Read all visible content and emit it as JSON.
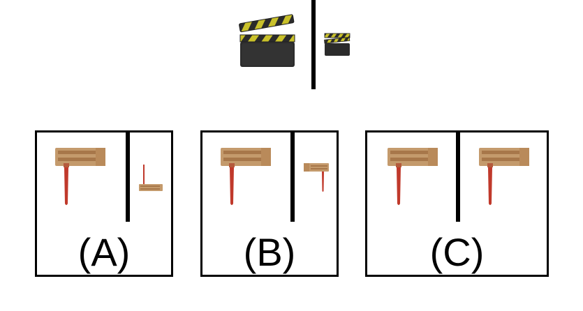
{
  "example": {
    "left_icon": "clapperboard-icon",
    "right_icon": "clapperboard-icon"
  },
  "options": [
    {
      "label": "(A)",
      "left_icon": "ratchet-noisemaker-icon",
      "right_icon": "ratchet-noisemaker-icon"
    },
    {
      "label": "(B)",
      "left_icon": "ratchet-noisemaker-icon",
      "right_icon": "ratchet-noisemaker-icon"
    },
    {
      "label": "(C)",
      "left_icon": "ratchet-noisemaker-icon",
      "right_icon": "ratchet-noisemaker-icon"
    }
  ],
  "colors": {
    "wood": "#c49a6c",
    "wood_dark": "#a7774a",
    "handle": "#c0392b",
    "clapper_body": "#2b2b2b",
    "clapper_stripe": "#c9c12a"
  }
}
